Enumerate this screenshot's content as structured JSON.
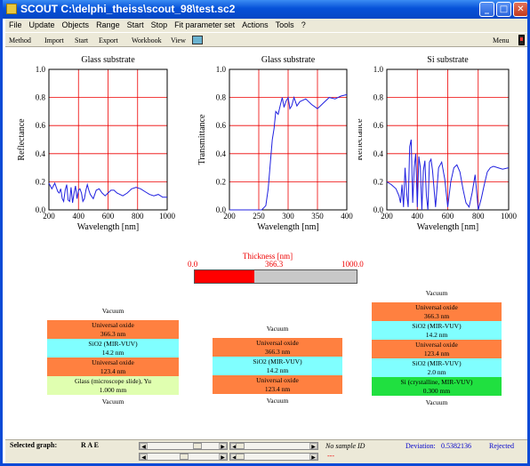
{
  "window": {
    "title": "SCOUT C:\\delphi_theiss\\scout_98\\test.sc2"
  },
  "menu": [
    "File",
    "Update",
    "Objects",
    "Range",
    "Start",
    "Stop",
    "Fit parameter set",
    "Actions",
    "Tools",
    "?"
  ],
  "toolbar": {
    "items": [
      "Method",
      "Import",
      "Start",
      "Export",
      "Workbook",
      "View"
    ],
    "right_label": "Menu"
  },
  "plots": [
    {
      "title": "Glass substrate",
      "ylabel": "Reflectance",
      "xlabel": "Wavelength [nm]",
      "xticks": [
        "200",
        "400",
        "600",
        "800",
        "1000"
      ],
      "yticks": [
        "0.0",
        "0.2",
        "0.4",
        "0.6",
        "0.8",
        "1.0"
      ]
    },
    {
      "title": "Glass substrate",
      "ylabel": "Transmittance",
      "xlabel": "Wavelength [nm]",
      "xticks": [
        "200",
        "250",
        "300",
        "350",
        "400"
      ],
      "yticks": [
        "0.0",
        "0.2",
        "0.4",
        "0.6",
        "0.8",
        "1.0"
      ]
    },
    {
      "title": "Si substrate",
      "ylabel": "Reflectance",
      "xlabel": "Wavelength [nm]",
      "xticks": [
        "200",
        "400",
        "600",
        "800",
        "1000"
      ],
      "yticks": [
        "0.0",
        "0.2",
        "0.4",
        "0.6",
        "0.8",
        "1.0"
      ]
    }
  ],
  "chart_data": [
    {
      "type": "line",
      "title": "Glass substrate",
      "xlabel": "Wavelength [nm]",
      "ylabel": "Reflectance",
      "xlim": [
        200,
        1000
      ],
      "ylim": [
        0,
        1
      ],
      "grid": true,
      "series": [
        {
          "color": "#2020e0",
          "x": [
            200,
            220,
            240,
            260,
            270,
            280,
            290,
            300,
            310,
            320,
            330,
            340,
            350,
            360,
            370,
            380,
            390,
            400,
            410,
            420,
            430,
            440,
            450,
            460,
            470,
            480,
            500,
            520,
            540,
            560,
            580,
            600,
            620,
            640,
            660,
            680,
            700,
            730,
            760,
            790,
            820,
            850,
            880,
            910,
            940,
            970,
            1000
          ],
          "y": [
            0.19,
            0.15,
            0.19,
            0.13,
            0.12,
            0.15,
            0.08,
            0.06,
            0.14,
            0.18,
            0.07,
            0.06,
            0.16,
            0.05,
            0.12,
            0.17,
            0.08,
            0.14,
            0.15,
            0.12,
            0.06,
            0.08,
            0.14,
            0.18,
            0.14,
            0.11,
            0.08,
            0.14,
            0.15,
            0.12,
            0.1,
            0.12,
            0.14,
            0.14,
            0.12,
            0.11,
            0.1,
            0.12,
            0.15,
            0.16,
            0.15,
            0.13,
            0.11,
            0.1,
            0.11,
            0.09,
            0.09
          ]
        }
      ]
    },
    {
      "type": "line",
      "title": "Glass substrate",
      "xlabel": "Wavelength [nm]",
      "ylabel": "Transmittance",
      "xlim": [
        200,
        400
      ],
      "ylim": [
        0,
        1
      ],
      "grid": true,
      "series": [
        {
          "color": "#2020e0",
          "x": [
            200,
            230,
            255,
            262,
            266,
            270,
            273,
            276,
            279,
            283,
            287,
            290,
            293,
            296,
            300,
            303,
            306,
            310,
            315,
            320,
            330,
            340,
            350,
            360,
            370,
            380,
            390,
            400
          ],
          "y": [
            0,
            0,
            0,
            0.03,
            0.15,
            0.35,
            0.5,
            0.58,
            0.7,
            0.68,
            0.75,
            0.8,
            0.73,
            0.77,
            0.8,
            0.72,
            0.74,
            0.8,
            0.74,
            0.77,
            0.79,
            0.75,
            0.72,
            0.76,
            0.8,
            0.79,
            0.81,
            0.82
          ]
        }
      ]
    },
    {
      "type": "line",
      "title": "Si substrate",
      "xlabel": "Wavelength [nm]",
      "ylabel": "Reflectance",
      "xlim": [
        200,
        1000
      ],
      "ylim": [
        0,
        1
      ],
      "grid": true,
      "series": [
        {
          "color": "#2020e0",
          "x": [
            200,
            230,
            260,
            280,
            290,
            300,
            310,
            320,
            330,
            340,
            350,
            360,
            370,
            380,
            390,
            400,
            410,
            420,
            430,
            440,
            450,
            460,
            470,
            480,
            490,
            500,
            520,
            540,
            560,
            580,
            600,
            620,
            640,
            660,
            680,
            700,
            720,
            740,
            760,
            780,
            800,
            820,
            840,
            860,
            880,
            900,
            930,
            960,
            1000
          ],
          "y": [
            0.2,
            0.18,
            0.15,
            0.1,
            0.05,
            0.18,
            0.02,
            0.3,
            0.12,
            0.02,
            0.45,
            0.5,
            0.05,
            0.3,
            0.4,
            0.02,
            0.38,
            0.3,
            0.0,
            0.28,
            0.35,
            0.1,
            0.0,
            0.34,
            0.36,
            0.28,
            0.02,
            0.3,
            0.34,
            0.22,
            0.02,
            0.2,
            0.3,
            0.32,
            0.27,
            0.15,
            0.05,
            0.02,
            0.12,
            0.25,
            0.0,
            0.08,
            0.18,
            0.27,
            0.3,
            0.31,
            0.3,
            0.29,
            0.3
          ]
        }
      ]
    }
  ],
  "thickness": {
    "label": "Thickness [nm]",
    "min": "0.0",
    "value": "366.3",
    "max": "1000.0",
    "fraction": 0.3663
  },
  "stacks": [
    {
      "layers": [
        {
          "type": "vacuum",
          "lines": [
            "Vacuum"
          ]
        },
        {
          "type": "oxide",
          "lines": [
            "Universal oxide",
            "366.3 nm"
          ]
        },
        {
          "type": "sio2",
          "lines": [
            "SiO2 (MIR-VUV)",
            "14.2 nm"
          ]
        },
        {
          "type": "oxide",
          "lines": [
            "Universal oxide",
            "123.4 nm"
          ]
        },
        {
          "type": "glass",
          "lines": [
            "Glass (microscope slide), Yu",
            "1.000 mm"
          ]
        },
        {
          "type": "vacuum",
          "lines": [
            "Vacuum"
          ]
        }
      ]
    },
    {
      "layers": [
        {
          "type": "vacuum",
          "lines": [
            "Vacuum"
          ]
        },
        {
          "type": "oxide",
          "lines": [
            "Universal oxide",
            "366.3 nm"
          ]
        },
        {
          "type": "sio2",
          "lines": [
            "SiO2 (MIR-VUV)",
            "14.2 nm"
          ]
        },
        {
          "type": "oxide",
          "lines": [
            "Universal oxide",
            "123.4 nm"
          ]
        },
        {
          "type": "vacuum",
          "lines": [
            "Vacuum"
          ]
        }
      ]
    },
    {
      "layers": [
        {
          "type": "vacuum",
          "lines": [
            "Vacuum"
          ]
        },
        {
          "type": "oxide",
          "lines": [
            "Universal oxide",
            "366.3 nm"
          ]
        },
        {
          "type": "sio2",
          "lines": [
            "SiO2 (MIR-VUV)",
            "14.2 nm"
          ]
        },
        {
          "type": "oxide",
          "lines": [
            "Universal oxide",
            "123.4 nm"
          ]
        },
        {
          "type": "sio2",
          "lines": [
            "SiO2 (MIR-VUV)",
            "2.0 nm"
          ]
        },
        {
          "type": "si",
          "lines": [
            "Si (crystalline, MIR-VUV)",
            "0.300 mm"
          ]
        },
        {
          "type": "vacuum",
          "lines": [
            "Vacuum"
          ]
        }
      ]
    }
  ],
  "layer_colors": {
    "vacuum": "#ffffff",
    "oxide": "#ff8040",
    "sio2": "#80ffff",
    "glass": "#e0ffb0",
    "si": "#20e040"
  },
  "status": {
    "selected_label": "Selected graph:",
    "rae": "R  A  E",
    "sample_id": "No sample ID",
    "sample_sub": "---",
    "deviation_label": "Deviation:",
    "deviation_value": "0.5382136",
    "state": "Rejected"
  }
}
